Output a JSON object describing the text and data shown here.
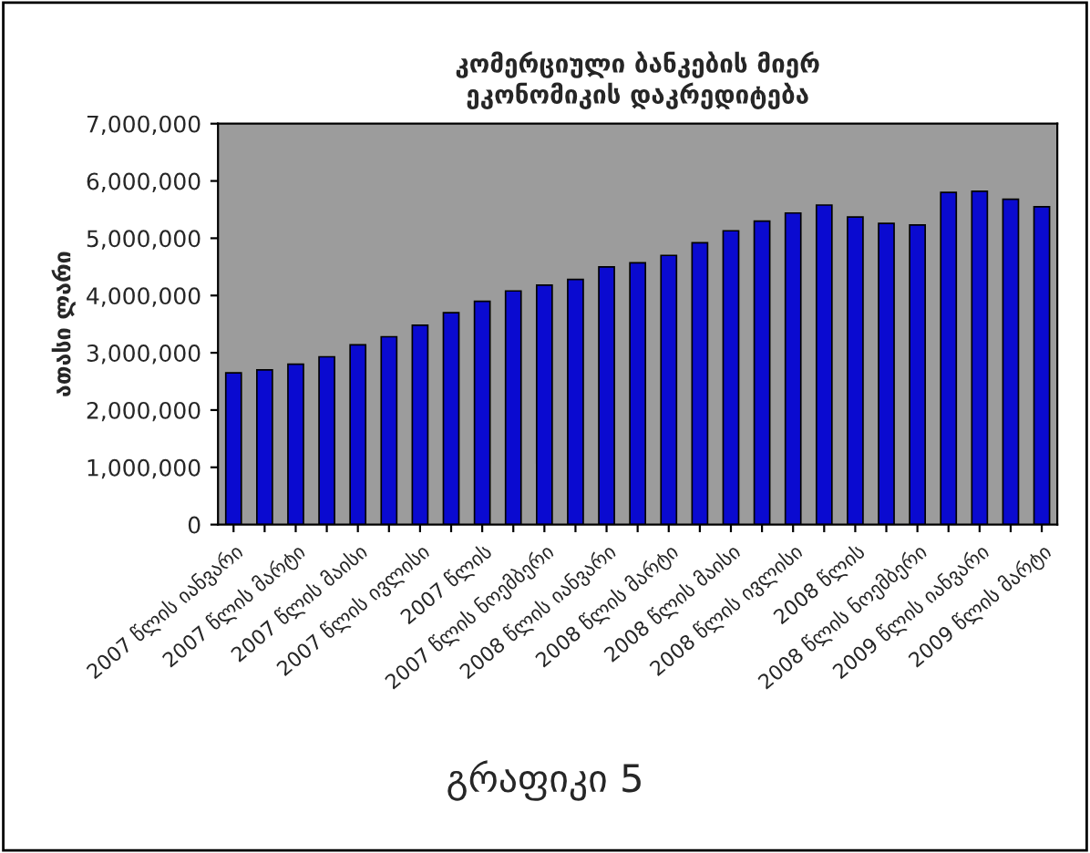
{
  "chart_data": {
    "type": "bar",
    "title": "კომერციული ბანკების მიერ\nეკონომიკის დაკრედიტება",
    "ylabel": "ათასი ლარი",
    "categories": [
      "2007 წლის იანვარი",
      null,
      "2007 წლის მარტი",
      null,
      "2007 წლის მაისი",
      null,
      "2007 წლის ივლისი",
      null,
      "2007 წლის",
      null,
      "2007 წლის ნოემბერი",
      null,
      "2008 წლის იანვარი",
      null,
      "2008 წლის მარტი",
      null,
      "2008 წლის მაისი",
      null,
      "2008 წლის ივლისი",
      null,
      "2008 წლის",
      null,
      "2008 წლის ნოემბერი",
      null,
      "2009 წლის იანვარი",
      null,
      "2009 წლის მარტი"
    ],
    "values": [
      2650000,
      2700000,
      2800000,
      2930000,
      3140000,
      3280000,
      3480000,
      3700000,
      3900000,
      4080000,
      4180000,
      4280000,
      4500000,
      4570000,
      4700000,
      4920000,
      5130000,
      5300000,
      5440000,
      5580000,
      5370000,
      5260000,
      5230000,
      5800000,
      5820000,
      5680000,
      5550000
    ],
    "color": "#0a0ad0",
    "ylim": [
      0,
      7000000
    ],
    "yticks": [
      {
        "value": 0,
        "label": "0"
      },
      {
        "value": 1000000,
        "label": "1,000,000"
      },
      {
        "value": 2000000,
        "label": "2,000,000"
      },
      {
        "value": 3000000,
        "label": "3,000,000"
      },
      {
        "value": 4000000,
        "label": "4,000,000"
      },
      {
        "value": 5000000,
        "label": "5,000,000"
      },
      {
        "value": 6000000,
        "label": "6,000,000"
      },
      {
        "value": 7000000,
        "label": "7,000,000"
      }
    ],
    "grid": false,
    "legend": false,
    "annotations": [
      "გრაფიკი 5"
    ]
  }
}
